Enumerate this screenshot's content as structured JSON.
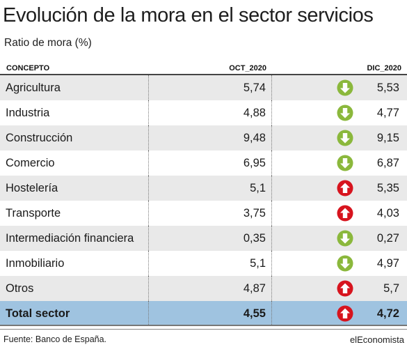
{
  "title": "Evolución de la mora en el sector servicios",
  "subtitle": "Ratio de mora (%)",
  "colors": {
    "down": "#8bb83c",
    "up": "#d7141e",
    "total_row": "#9fc3e0",
    "shade_row": "#e9e9e9"
  },
  "chart_data": {
    "type": "table",
    "columns": [
      "CONCEPTO",
      "OCT_2020",
      "DIC_2020"
    ],
    "rows": [
      {
        "concepto": "Agricultura",
        "oct": "5,74",
        "dic": "5,53",
        "trend": "down"
      },
      {
        "concepto": "Industria",
        "oct": "4,88",
        "dic": "4,77",
        "trend": "down"
      },
      {
        "concepto": "Construcción",
        "oct": "9,48",
        "dic": "9,15",
        "trend": "down"
      },
      {
        "concepto": "Comercio",
        "oct": "6,95",
        "dic": "6,87",
        "trend": "down"
      },
      {
        "concepto": "Hostelería",
        "oct": "5,1",
        "dic": "5,35",
        "trend": "up"
      },
      {
        "concepto": "Transporte",
        "oct": "3,75",
        "dic": "4,03",
        "trend": "up"
      },
      {
        "concepto": "Intermediación financiera",
        "oct": "0,35",
        "dic": "0,27",
        "trend": "down"
      },
      {
        "concepto": "Inmobiliario",
        "oct": "5,1",
        "dic": "4,97",
        "trend": "down"
      },
      {
        "concepto": "Otros",
        "oct": "4,87",
        "dic": "5,7",
        "trend": "up"
      }
    ],
    "total": {
      "concepto": "Total sector",
      "oct": "4,55",
      "dic": "4,72",
      "trend": "up"
    }
  },
  "footer": {
    "source": "Fuente: Banco de España.",
    "brand": "elEconomista"
  }
}
